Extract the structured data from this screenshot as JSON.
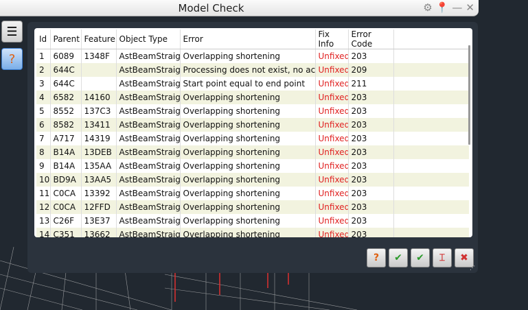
{
  "window": {
    "title": "Model Check"
  },
  "columns": [
    "Id",
    "Parent",
    "Feature",
    "Object Type",
    "Error",
    "Fix Info",
    "Error Code"
  ],
  "rows": [
    [
      "1",
      "6089",
      "1348F",
      "AstBeamStraight",
      "Overlapping shortening",
      "Unfixed",
      "203"
    ],
    [
      "2",
      "644C",
      "",
      "AstBeamStraight",
      "Processing does not exist, no action",
      "Unfixed",
      "209"
    ],
    [
      "3",
      "644C",
      "",
      "AstBeamStraight",
      "Start point equal to end point",
      "Unfixed",
      "211"
    ],
    [
      "4",
      "6582",
      "14160",
      "AstBeamStraight",
      "Overlapping shortening",
      "Unfixed",
      "203"
    ],
    [
      "5",
      "8552",
      "137C3",
      "AstBeamStraight",
      "Overlapping shortening",
      "Unfixed",
      "203"
    ],
    [
      "6",
      "8582",
      "13411",
      "AstBeamStraight",
      "Overlapping shortening",
      "Unfixed",
      "203"
    ],
    [
      "7",
      "A717",
      "14319",
      "AstBeamStraight",
      "Overlapping shortening",
      "Unfixed",
      "203"
    ],
    [
      "8",
      "B14A",
      "13DEB",
      "AstBeamStraight",
      "Overlapping shortening",
      "Unfixed",
      "203"
    ],
    [
      "9",
      "B14A",
      "135AA",
      "AstBeamStraight",
      "Overlapping shortening",
      "Unfixed",
      "203"
    ],
    [
      "10",
      "BD9A",
      "13AA5",
      "AstBeamStraight",
      "Overlapping shortening",
      "Unfixed",
      "203"
    ],
    [
      "11",
      "C0CA",
      "13392",
      "AstBeamStraight",
      "Overlapping shortening",
      "Unfixed",
      "203"
    ],
    [
      "12",
      "C0CA",
      "12FFD",
      "AstBeamStraight",
      "Overlapping shortening",
      "Unfixed",
      "203"
    ],
    [
      "13",
      "C26F",
      "13E37",
      "AstBeamStraight",
      "Overlapping shortening",
      "Unfixed",
      "203"
    ],
    [
      "14",
      "C351",
      "13662",
      "AstBeamStraight",
      "Overlapping shortening",
      "Unfixed",
      "203"
    ]
  ],
  "colors": {
    "unfixed": "#e02020",
    "alt_row": "#f2f3df",
    "accent": "#3b7dd0"
  },
  "icons": {
    "settings": "gear-icon",
    "pin": "pin-icon",
    "minimize": "minimize-icon",
    "close": "close-icon"
  }
}
